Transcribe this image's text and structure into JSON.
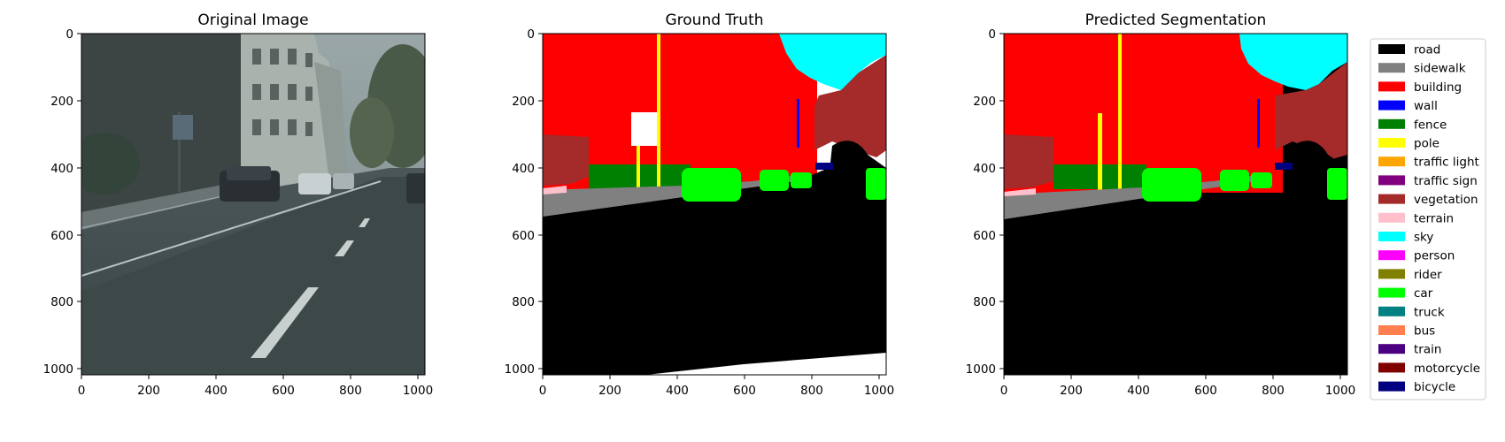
{
  "panels": [
    {
      "title": "Original Image"
    },
    {
      "title": "Ground Truth"
    },
    {
      "title": "Predicted Segmentation"
    }
  ],
  "axis_ticks": {
    "x": [
      "0",
      "200",
      "400",
      "600",
      "800",
      "1000"
    ],
    "y": [
      "0",
      "200",
      "400",
      "600",
      "800",
      "1000"
    ]
  },
  "legend": [
    {
      "label": "road",
      "color": "#000000"
    },
    {
      "label": "sidewalk",
      "color": "#808080"
    },
    {
      "label": "building",
      "color": "#ff0000"
    },
    {
      "label": "wall",
      "color": "#0000ff"
    },
    {
      "label": "fence",
      "color": "#008000"
    },
    {
      "label": "pole",
      "color": "#ffff00"
    },
    {
      "label": "traffic light",
      "color": "#ffa500"
    },
    {
      "label": "traffic sign",
      "color": "#800080"
    },
    {
      "label": "vegetation",
      "color": "#a52a2a"
    },
    {
      "label": "terrain",
      "color": "#ffc0cb"
    },
    {
      "label": "sky",
      "color": "#00ffff"
    },
    {
      "label": "person",
      "color": "#ff00ff"
    },
    {
      "label": "rider",
      "color": "#808000"
    },
    {
      "label": "car",
      "color": "#00ff00"
    },
    {
      "label": "truck",
      "color": "#008080"
    },
    {
      "label": "bus",
      "color": "#ff7f50"
    },
    {
      "label": "train",
      "color": "#4b0082"
    },
    {
      "label": "motorcycle",
      "color": "#800000"
    },
    {
      "label": "bicycle",
      "color": "#000080"
    }
  ]
}
